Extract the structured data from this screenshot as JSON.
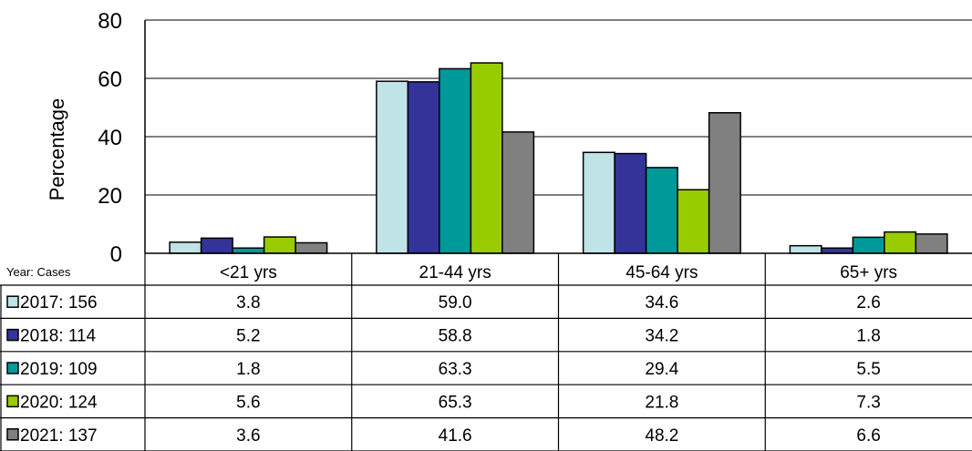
{
  "chart_data": {
    "type": "bar",
    "ylabel": "Percentage",
    "ylim": [
      0,
      80
    ],
    "yticks": [
      "0",
      "20",
      "40",
      "60",
      "80"
    ],
    "grid": true,
    "categories": [
      "<21 yrs",
      "21-44 yrs",
      "45-64 yrs",
      "65+ yrs"
    ],
    "table_header": "Year:  Cases",
    "series": [
      {
        "name": "2017: 156",
        "color": "#bfe3e6",
        "values": [
          3.8,
          59.0,
          34.6,
          2.6
        ],
        "labels": [
          "3.8",
          "59.0",
          "34.6",
          "2.6"
        ]
      },
      {
        "name": "2018: 114",
        "color": "#333399",
        "values": [
          5.2,
          58.8,
          34.2,
          1.8
        ],
        "labels": [
          "5.2",
          "58.8",
          "34.2",
          "1.8"
        ]
      },
      {
        "name": "2019: 109",
        "color": "#009999",
        "values": [
          1.8,
          63.3,
          29.4,
          5.5
        ],
        "labels": [
          "1.8",
          "63.3",
          "29.4",
          "5.5"
        ]
      },
      {
        "name": "2020: 124",
        "color": "#99cc00",
        "values": [
          5.6,
          65.3,
          21.8,
          7.3
        ],
        "labels": [
          "5.6",
          "65.3",
          "21.8",
          "7.3"
        ]
      },
      {
        "name": "2021: 137",
        "color": "#808080",
        "values": [
          3.6,
          41.6,
          48.2,
          6.6
        ],
        "labels": [
          "3.6",
          "41.6",
          "48.2",
          "6.6"
        ]
      }
    ]
  }
}
